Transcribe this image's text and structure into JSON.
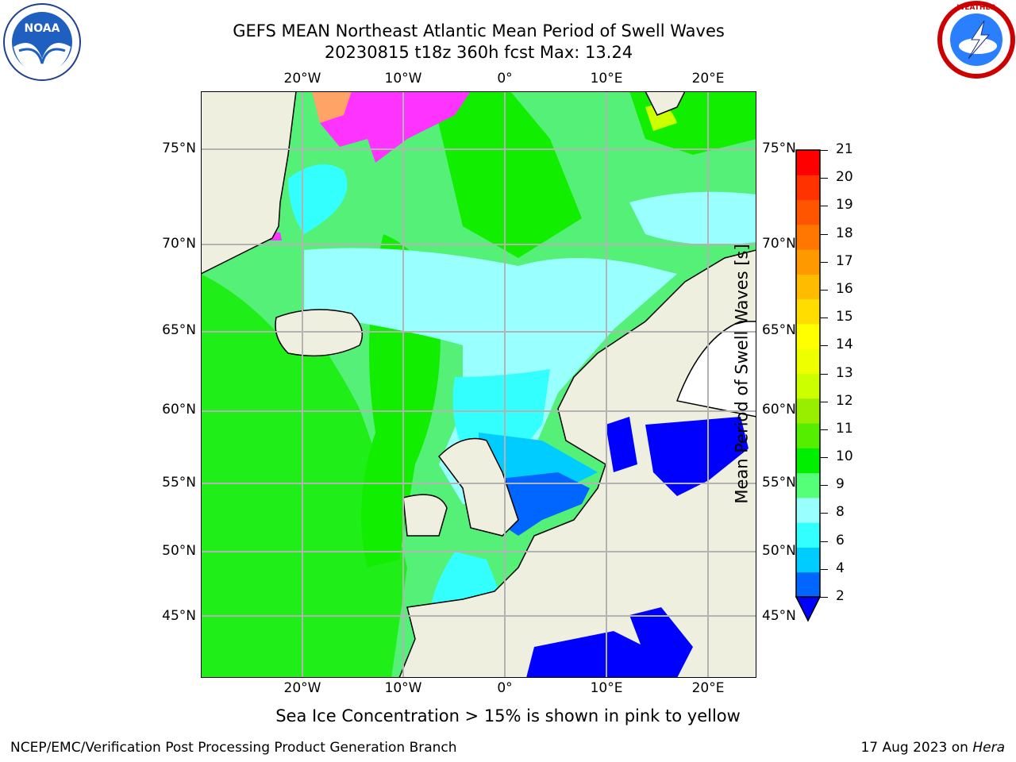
{
  "header": {
    "title_line1": "GEFS MEAN Northeast Atlantic Mean Period of Swell Waves",
    "title_line2": "20230815 t18z 360h fcst   Max: 13.24"
  },
  "logos": {
    "left": "NOAA",
    "right": "NATIONAL WEATHER SERVICE"
  },
  "map": {
    "lon_labels": [
      "20°W",
      "10°W",
      "0°",
      "10°E",
      "20°E"
    ],
    "lat_labels": [
      "75°N",
      "70°N",
      "65°N",
      "60°N",
      "55°N",
      "50°N",
      "45°N"
    ],
    "lon_range": [
      -30,
      25
    ],
    "lat_range": [
      41,
      78
    ]
  },
  "colorbar": {
    "title": "Mean Period of Swell Waves [s]",
    "ticks": [
      "21",
      "20",
      "19",
      "18",
      "17",
      "16",
      "15",
      "14",
      "13",
      "12",
      "11",
      "10",
      "9",
      "8",
      "6",
      "4",
      "2"
    ],
    "colors": [
      "#0066ff",
      "#00ccff",
      "#33ffff",
      "#99ffff",
      "#55ff77",
      "#00ee00",
      "#55ee00",
      "#99ee00",
      "#ccff00",
      "#eeff00",
      "#ffff00",
      "#ffdd00",
      "#ffbb00",
      "#ff9900",
      "#ff7700",
      "#ff5500",
      "#ff3300",
      "#ff0000"
    ],
    "extend_color": "#0000ff"
  },
  "footer": {
    "note": "Sea Ice Concentration > 15% is shown in pink to yellow",
    "credit_left": "NCEP/EMC/Verification Post Processing Product Generation Branch",
    "credit_right_date": "17 Aug 2023 on ",
    "credit_right_host": "Hera"
  }
}
